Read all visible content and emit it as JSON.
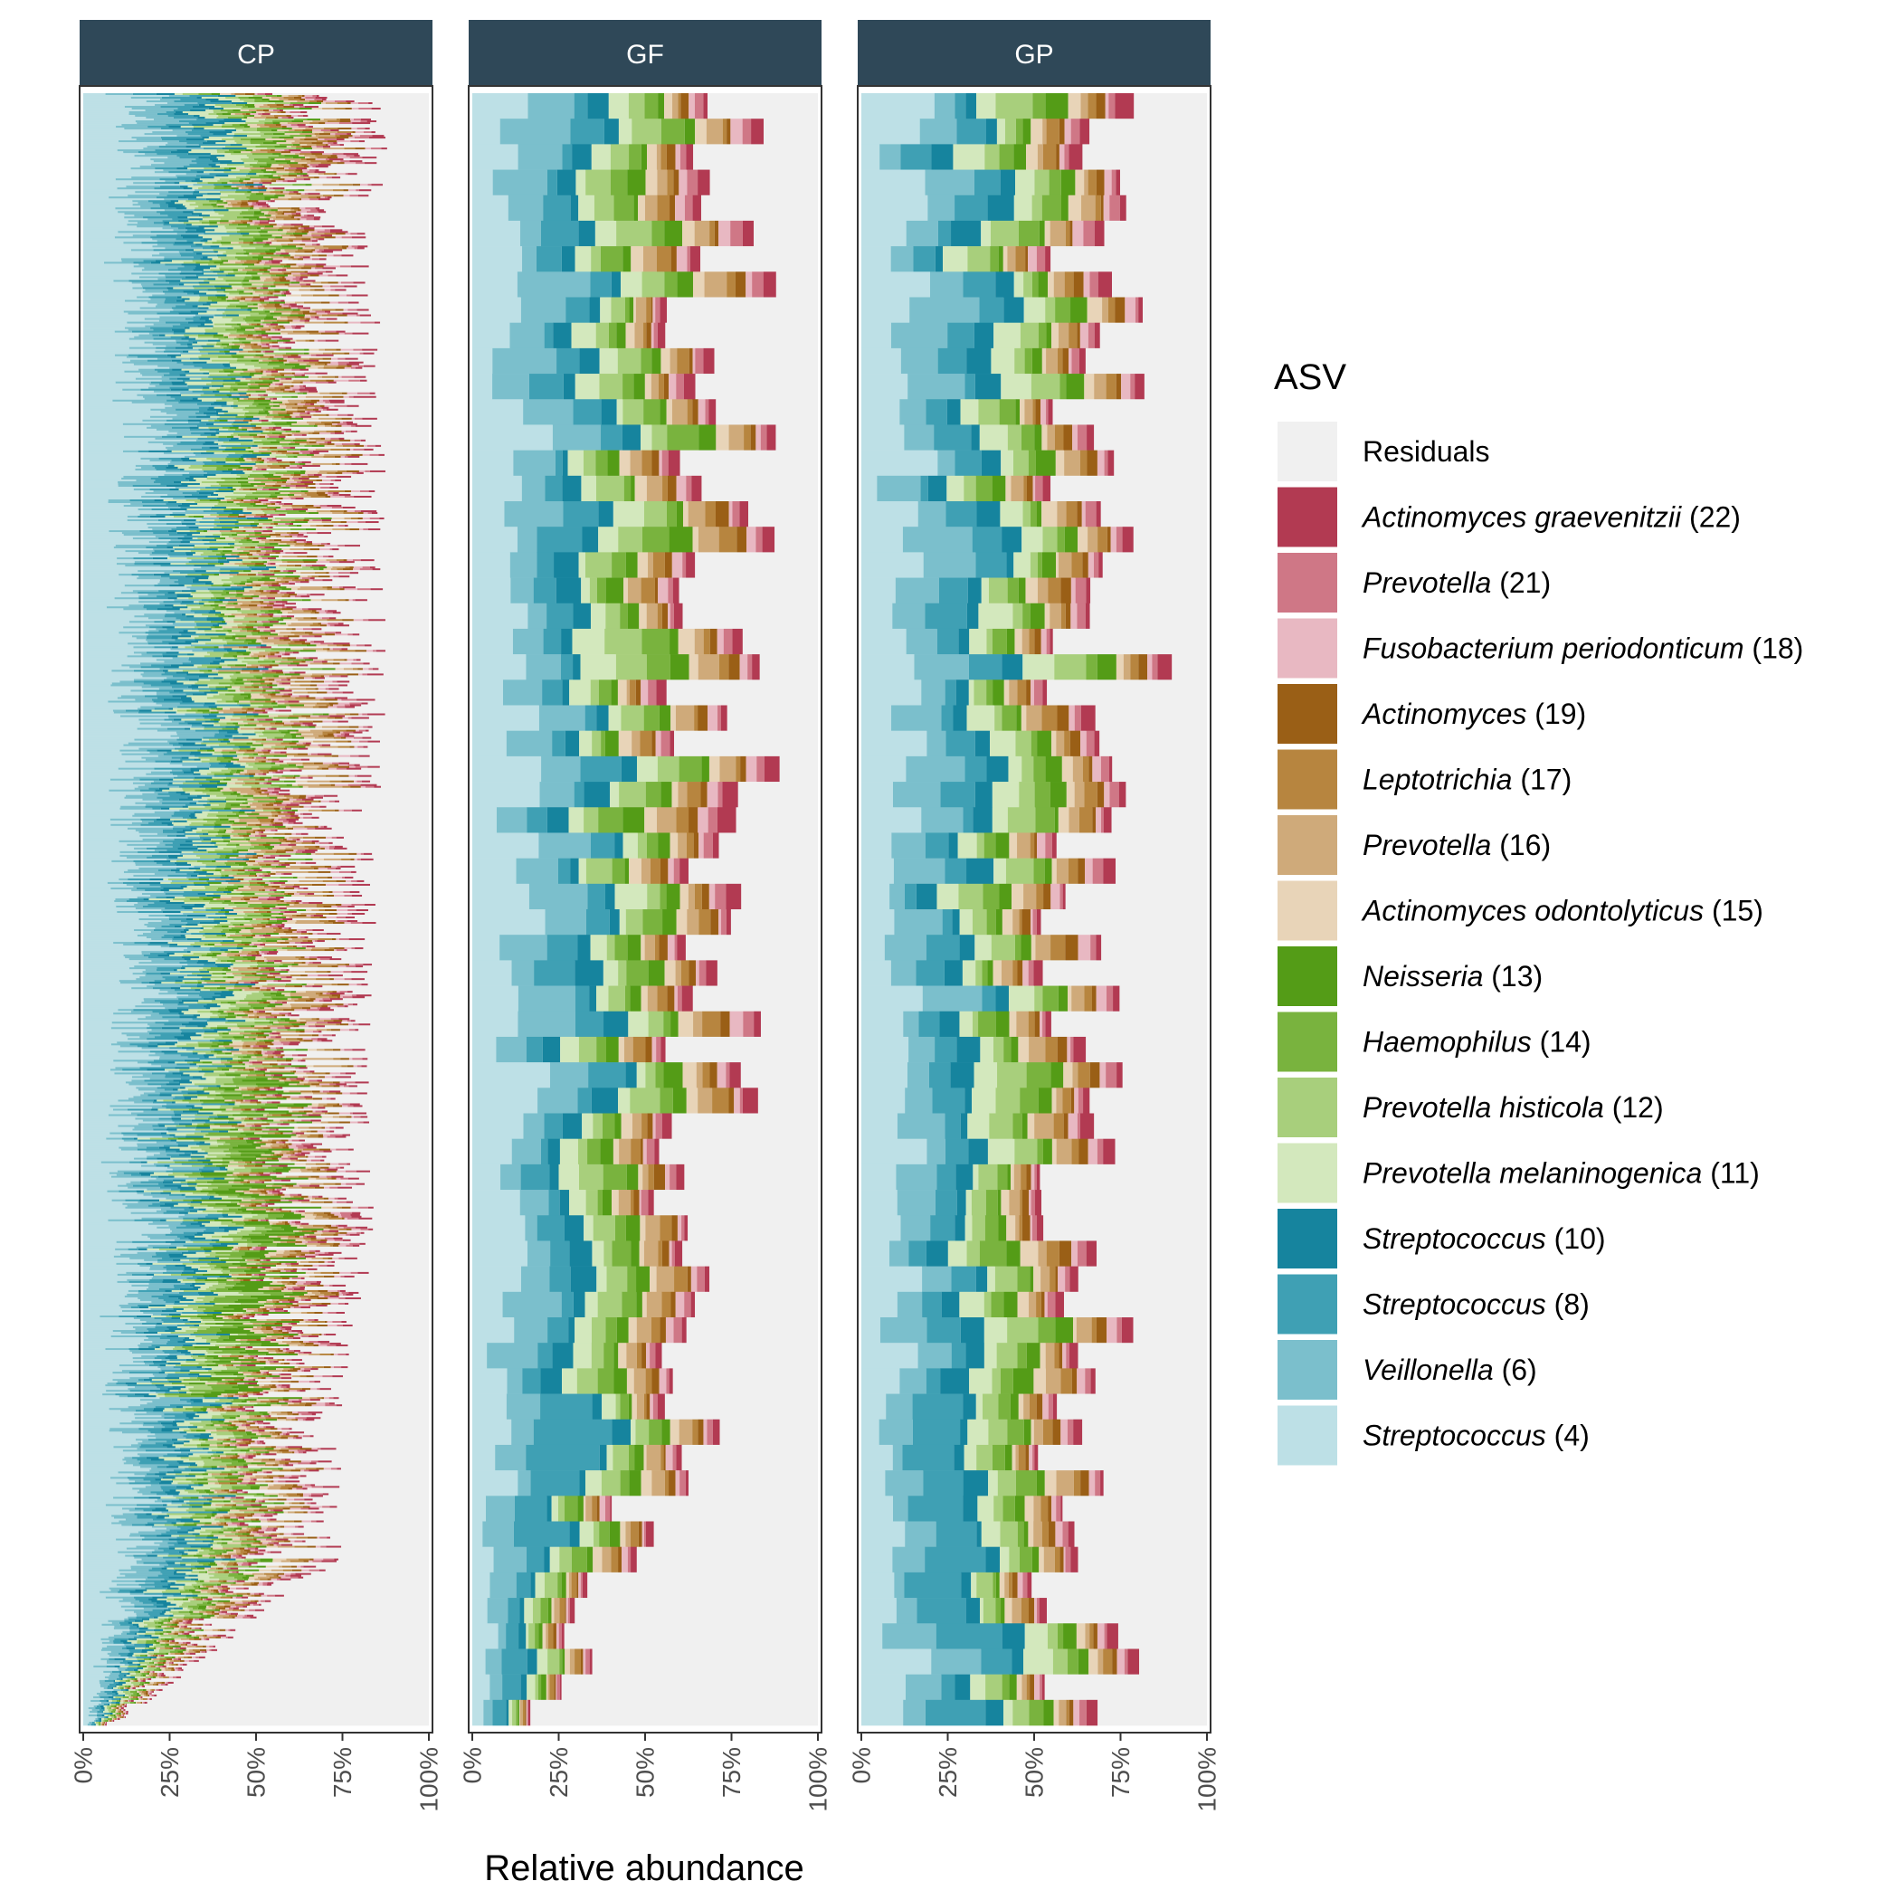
{
  "chart_data": {
    "type": "bar",
    "orientation": "horizontal",
    "stacked": true,
    "xlabel": "Relative abundance",
    "xlim": [
      0,
      1
    ],
    "x_ticks": [
      "0%",
      "25%",
      "50%",
      "75%",
      "100%"
    ],
    "facets": [
      "CP",
      "GF",
      "GP"
    ],
    "legend": {
      "title": "ASV",
      "position": "right"
    },
    "residual_color": "#f0f0f0",
    "series": [
      {
        "id": "residuals",
        "name_italic": "Residuals",
        "count": "",
        "color": "#f0f0f0"
      },
      {
        "id": "asv22",
        "name_italic": "Actinomyces graevenitzii",
        "count": "(22)",
        "color": "#b23a52"
      },
      {
        "id": "asv21",
        "name_italic": "Prevotella",
        "count": "(21)",
        "color": "#cf7786"
      },
      {
        "id": "asv18",
        "name_italic": "Fusobacterium periodonticum",
        "count": "(18)",
        "color": "#e8b8c2"
      },
      {
        "id": "asv19",
        "name_italic": "Actinomyces",
        "count": "(19)",
        "color": "#9a5f16"
      },
      {
        "id": "asv17",
        "name_italic": "Leptotrichia",
        "count": "(17)",
        "color": "#b7853f"
      },
      {
        "id": "asv16",
        "name_italic": "Prevotella",
        "count": "(16)",
        "color": "#cfaa7a"
      },
      {
        "id": "asv15",
        "name_italic": "Actinomyces odontolyticus",
        "count": "(15)",
        "color": "#e8d4b8"
      },
      {
        "id": "asv13",
        "name_italic": "Neisseria",
        "count": "(13)",
        "color": "#549c17"
      },
      {
        "id": "asv14",
        "name_italic": "Haemophilus",
        "count": "(14)",
        "color": "#79b33e"
      },
      {
        "id": "asv12",
        "name_italic": "Prevotella histicola",
        "count": "(12)",
        "color": "#a8cf7c"
      },
      {
        "id": "asv11",
        "name_italic": "Prevotella melaninogenica",
        "count": "(11)",
        "color": "#d3e8bd"
      },
      {
        "id": "asv10",
        "name_italic": "Streptococcus",
        "count": "(10)",
        "color": "#16849e"
      },
      {
        "id": "asv8",
        "name_italic": "Streptococcus",
        "count": "(8)",
        "color": "#3fa0b4"
      },
      {
        "id": "asv6",
        "name_italic": "Veillonella",
        "count": "(6)",
        "color": "#7bbfcc"
      },
      {
        "id": "asv4",
        "name_italic": "Streptococcus",
        "count": "(4)",
        "color": "#bde0e6"
      }
    ],
    "stack_order_from_zero": [
      "asv4",
      "asv6",
      "asv8",
      "asv10",
      "asv11",
      "asv12",
      "asv14",
      "asv13",
      "asv15",
      "asv16",
      "asv17",
      "asv19",
      "asv18",
      "asv21",
      "asv22",
      "residuals"
    ],
    "panels": [
      {
        "label": "CP",
        "n_samples": 900,
        "profile_note": "mean cumulative fraction at each stack boundary (asv4, asv6, asv8, asv10, asv11, asv12, asv14, asv13, asv15, asv16, asv17, asv19, asv18, asv21, asv22) by position from top to bottom",
        "profile_positions": [
          0.0,
          0.1,
          0.2,
          0.3,
          0.4,
          0.5,
          0.6,
          0.7,
          0.8,
          0.9,
          1.0
        ],
        "mean_total": [
          0.72,
          0.68,
          0.7,
          0.7,
          0.7,
          0.68,
          0.66,
          0.68,
          0.6,
          0.6,
          0.08
        ]
      },
      {
        "label": "GF",
        "n_samples": 64,
        "profile_positions": [
          0.0,
          0.1,
          0.2,
          0.3,
          0.4,
          0.5,
          0.6,
          0.7,
          0.8,
          0.9,
          1.0
        ],
        "mean_total": [
          0.7,
          0.72,
          0.72,
          0.74,
          0.75,
          0.72,
          0.68,
          0.68,
          0.6,
          0.5,
          0.2
        ]
      },
      {
        "label": "GP",
        "n_samples": 64,
        "profile_positions": [
          0.0,
          0.1,
          0.2,
          0.3,
          0.4,
          0.5,
          0.6,
          0.7,
          0.8,
          0.9,
          1.0
        ],
        "mean_total": [
          0.74,
          0.68,
          0.72,
          0.74,
          0.7,
          0.66,
          0.66,
          0.66,
          0.62,
          0.6,
          0.7
        ]
      }
    ]
  }
}
